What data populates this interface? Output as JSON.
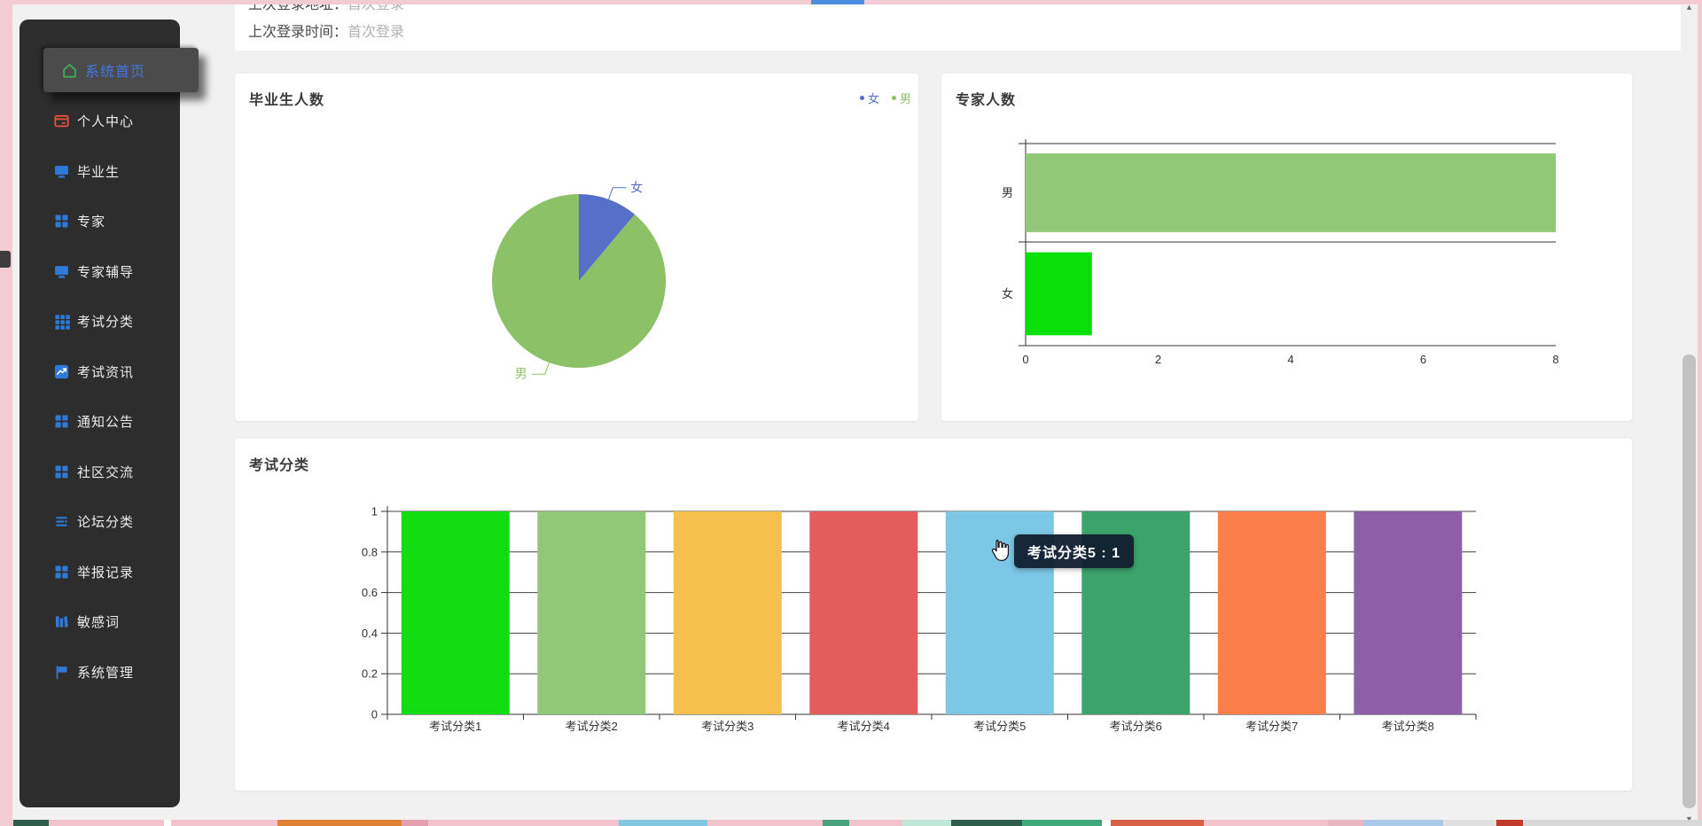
{
  "page": {
    "login_info": [
      {
        "label": "上次登录地址：",
        "value": "首次登录"
      },
      {
        "label": "上次登录时间：",
        "value": "首次登录"
      }
    ]
  },
  "sidebar": {
    "items": [
      {
        "label": "系统首页",
        "slug": "home",
        "icon": "home-icon",
        "active": true
      },
      {
        "label": "个人中心",
        "slug": "profile",
        "icon": "id-card-icon",
        "active": false
      },
      {
        "label": "毕业生",
        "slug": "graduates",
        "icon": "monitor-icon",
        "active": false
      },
      {
        "label": "专家",
        "slug": "experts",
        "icon": "grid4-icon",
        "active": false
      },
      {
        "label": "专家辅导",
        "slug": "expert-tutoring",
        "icon": "monitor-icon",
        "active": false
      },
      {
        "label": "考试分类",
        "slug": "exam-category",
        "icon": "grid9-icon",
        "active": false
      },
      {
        "label": "考试资讯",
        "slug": "exam-news",
        "icon": "trend-icon",
        "active": false
      },
      {
        "label": "通知公告",
        "slug": "notices",
        "icon": "grid4-icon",
        "active": false
      },
      {
        "label": "社区交流",
        "slug": "community",
        "icon": "grid4-icon",
        "active": false
      },
      {
        "label": "论坛分类",
        "slug": "forum-category",
        "icon": "list-icon",
        "active": false
      },
      {
        "label": "举报记录",
        "slug": "report-records",
        "icon": "grid4-icon",
        "active": false
      },
      {
        "label": "敏感词",
        "slug": "sensitive-words",
        "icon": "book-icon",
        "active": false
      },
      {
        "label": "系统管理",
        "slug": "system-management",
        "icon": "flag-icon",
        "active": false
      }
    ],
    "colors": {
      "icon_blue": "#2e7ad7",
      "icon_green": "#3fae5a",
      "icon_red": "#e8513c",
      "active_text": "#4577e2"
    }
  },
  "chart_data": [
    {
      "type": "pie",
      "title": "毕业生人数",
      "legend": {
        "position": "top-right",
        "items": [
          "女",
          "男"
        ]
      },
      "series": [
        {
          "name": "女",
          "value": 1,
          "color": "#5570c6"
        },
        {
          "name": "男",
          "value": 8,
          "color": "#8cc168"
        }
      ]
    },
    {
      "type": "bar",
      "orientation": "horizontal",
      "title": "专家人数",
      "categories": [
        "男",
        "女"
      ],
      "values": [
        8,
        1
      ],
      "colors": [
        "#90c878",
        "#09e009"
      ],
      "xlim": [
        0,
        8
      ],
      "xticks": [
        0,
        2,
        4,
        6,
        8
      ],
      "grid": true
    },
    {
      "type": "bar",
      "orientation": "vertical",
      "title": "考试分类",
      "categories": [
        "考试分类1",
        "考试分类2",
        "考试分类3",
        "考试分类4",
        "考试分类5",
        "考试分类6",
        "考试分类7",
        "考试分类8"
      ],
      "values": [
        1,
        1,
        1,
        1,
        1,
        1,
        1,
        1
      ],
      "colors": [
        "#12dd12",
        "#90c878",
        "#f6c04e",
        "#e45d5d",
        "#7cc6e6",
        "#3ba36b",
        "#fa7f4b",
        "#8e5fa8"
      ],
      "ylim": [
        0,
        1
      ],
      "yticks": [
        0,
        0.2,
        0.4,
        0.6,
        0.8,
        1
      ],
      "grid": true,
      "tooltip": {
        "category": "考试分类5",
        "separator": " : ",
        "value": 1
      }
    }
  ]
}
